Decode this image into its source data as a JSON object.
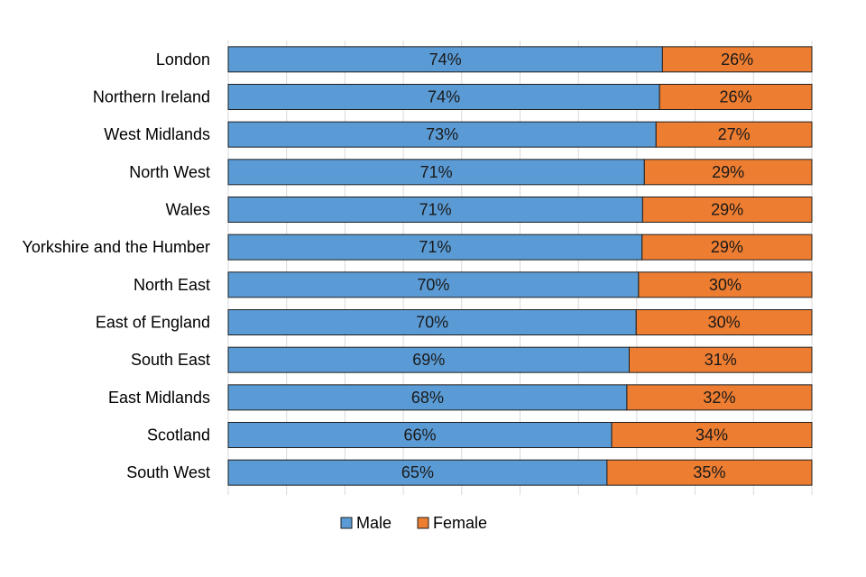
{
  "chart_data": {
    "type": "bar",
    "orientation": "horizontal",
    "stacked": true,
    "stacking": "percent",
    "categories": [
      "London",
      "Northern Ireland",
      "West Midlands",
      "North West",
      "Wales",
      "Yorkshire and the Humber",
      "North East",
      "East of England",
      "South East",
      "East Midlands",
      "Scotland",
      "South West"
    ],
    "series": [
      {
        "name": "Male",
        "color": "#5B9BD5",
        "values": [
          74.4,
          73.9,
          73.3,
          71.3,
          71.0,
          70.9,
          70.3,
          69.9,
          68.7,
          68.3,
          65.7,
          64.9
        ],
        "labels": [
          "74%",
          "74%",
          "73%",
          "71%",
          "71%",
          "71%",
          "70%",
          "70%",
          "69%",
          "68%",
          "66%",
          "65%"
        ]
      },
      {
        "name": "Female",
        "color": "#ED7D31",
        "values": [
          25.6,
          26.1,
          26.7,
          28.7,
          29.0,
          29.1,
          29.7,
          30.1,
          31.3,
          31.7,
          34.3,
          35.1
        ],
        "labels": [
          "26%",
          "26%",
          "27%",
          "29%",
          "29%",
          "29%",
          "30%",
          "30%",
          "31%",
          "32%",
          "34%",
          "35%"
        ]
      }
    ],
    "xlim": [
      0,
      100
    ],
    "grid": true,
    "legend": "bottom",
    "title": "",
    "xlabel": "",
    "ylabel": ""
  }
}
